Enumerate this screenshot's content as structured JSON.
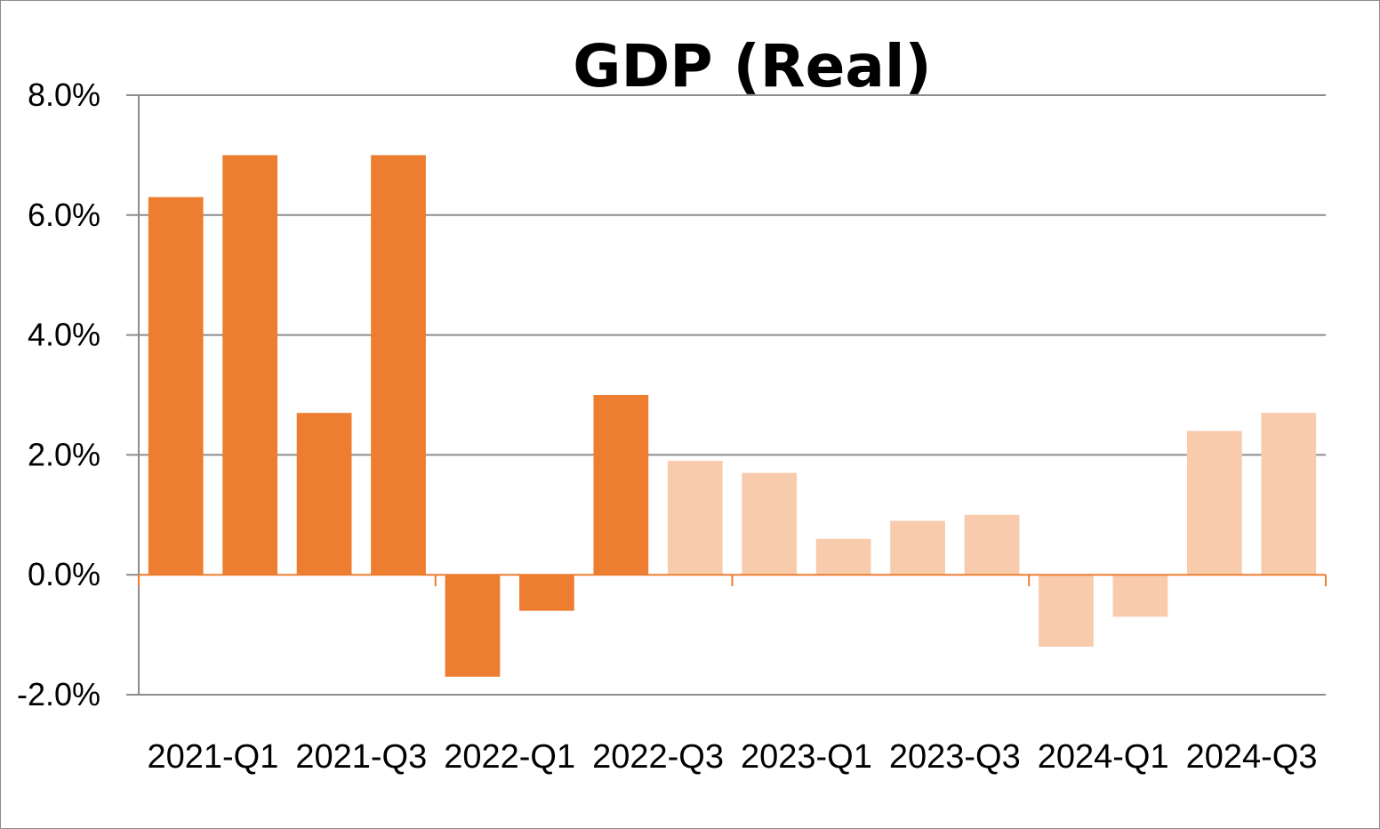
{
  "chart_data": {
    "type": "bar",
    "title": "GDP (Real)",
    "xlabel": "",
    "ylabel": "",
    "ylim": [
      -2.0,
      8.0
    ],
    "y_ticks": [
      "8.0%",
      "6.0%",
      "4.0%",
      "2.0%",
      "0.0%",
      "-2.0%"
    ],
    "y_tick_values": [
      8.0,
      6.0,
      4.0,
      2.0,
      0.0,
      -2.0
    ],
    "x_tick_labels": [
      "2021-Q1",
      "2021-Q3",
      "2022-Q1",
      "2022-Q3",
      "2023-Q1",
      "2023-Q3",
      "2024-Q1",
      "2024-Q3"
    ],
    "categories": [
      "2021-Q1",
      "2021-Q2",
      "2021-Q3",
      "2021-Q4",
      "2022-Q1",
      "2022-Q2",
      "2022-Q3",
      "2022-Q4",
      "2023-Q1",
      "2023-Q2",
      "2023-Q3",
      "2023-Q4",
      "2024-Q1",
      "2024-Q2",
      "2024-Q3",
      "2024-Q4"
    ],
    "values": [
      6.3,
      7.0,
      2.7,
      7.0,
      -1.7,
      -0.6,
      3.0,
      1.9,
      1.7,
      0.6,
      0.9,
      1.0,
      -1.2,
      -0.7,
      2.4,
      2.7
    ],
    "series_style": [
      "actual",
      "actual",
      "actual",
      "actual",
      "actual",
      "actual",
      "actual",
      "light",
      "light",
      "light",
      "light",
      "light",
      "light",
      "light",
      "light",
      "light"
    ],
    "grid": true,
    "legend": "none",
    "colors": {
      "actual": "#ed7d31",
      "light": "#f8cbad",
      "grid": "#8c8c8c",
      "zero_axis": "#ed7d31"
    }
  }
}
